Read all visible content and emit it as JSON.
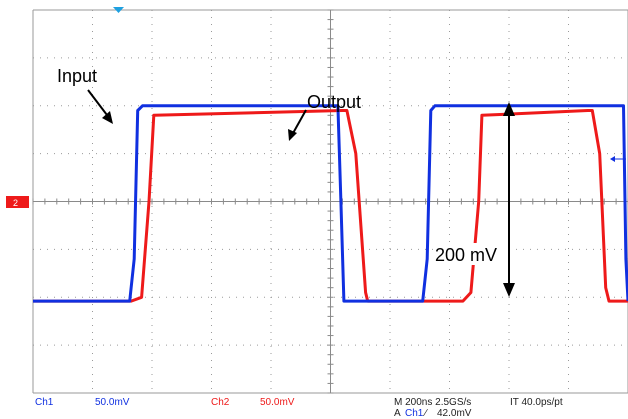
{
  "chart_data": {
    "type": "line",
    "title": "",
    "xlabel": "",
    "ylabel": "",
    "grid": true,
    "x_unit": "ns",
    "y_unit": "mV",
    "xlim": [
      0,
      2000
    ],
    "ylim": [
      -200,
      200
    ],
    "series": [
      {
        "name": "Input",
        "color": "#1030e0",
        "channel": "Ch1",
        "x": [
          0,
          325,
          340,
          352,
          368,
          1025,
          1035,
          1045,
          1310,
          1325,
          1337,
          1351,
          1985,
          1993,
          2000
        ],
        "y": [
          -104,
          -104,
          -60,
          95,
          100,
          100,
          0,
          -104,
          -104,
          -60,
          95,
          100,
          100,
          -60,
          -104
        ]
      },
      {
        "name": "Output",
        "color": "#ee1a1a",
        "channel": "Ch2",
        "x": [
          0,
          330,
          365,
          390,
          406,
          1040,
          1055,
          1085,
          1118,
          1125,
          1445,
          1472,
          1498,
          1509,
          1865,
          1880,
          1905,
          1925,
          1936,
          2000
        ],
        "y": [
          -104,
          -104,
          -100,
          0,
          90,
          95,
          95,
          50,
          -95,
          -104,
          -104,
          -95,
          0,
          90,
          95,
          95,
          50,
          -90,
          -104,
          -104
        ]
      }
    ],
    "annotations": {
      "input": "Input",
      "output": "Output",
      "amplitude": "200 mV"
    },
    "ground_marker": "2",
    "status": {
      "ch1": "Ch1",
      "ch1_scale": "50.0mV",
      "ch2": "Ch2",
      "ch2_scale": "50.0mV",
      "timebase": "M 200ns 2.5GS/s",
      "resolution": "IT 40.0ps/pt",
      "trigger_prefix": "A",
      "trigger_ch": "Ch1",
      "trigger_symbol": "∕",
      "trigger_level": "42.0mV"
    }
  }
}
